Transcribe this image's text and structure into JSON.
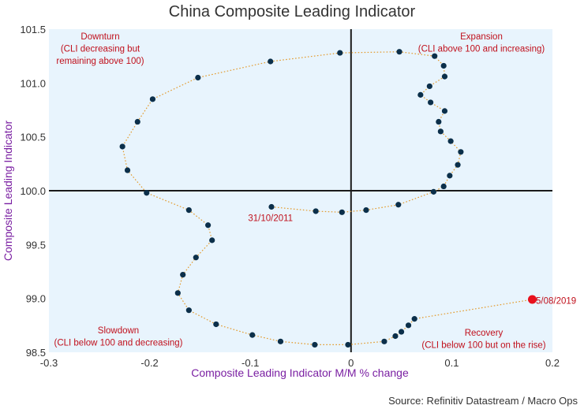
{
  "chart_data": {
    "type": "scatter",
    "title": "China Composite Leading Indicator",
    "xlabel": "Composite Leading Indicator M/M % change",
    "ylabel": "Composite Leading Indicator",
    "xlim": [
      -0.3,
      0.2
    ],
    "ylim": [
      98.5,
      101.5
    ],
    "xticks": [
      "-0.3",
      "-0.2",
      "-0.1",
      "0",
      "0.1",
      "0.2"
    ],
    "yticks": [
      "98.5",
      "99.0",
      "99.5",
      "100.0",
      "100.5",
      "101.0",
      "101.5"
    ],
    "grid": false,
    "reference_lines": {
      "x": 0,
      "y": 100
    },
    "colors": {
      "background": "#e8f4fd",
      "points": "#0b2f4a",
      "path": "#e39a2c",
      "latest_point": "#e8101c",
      "annotation": "#c0101c",
      "axis_label": "#7a1fa2"
    },
    "points": [
      {
        "x": -0.079,
        "y": 99.85
      },
      {
        "x": -0.035,
        "y": 99.81
      },
      {
        "x": -0.009,
        "y": 99.8
      },
      {
        "x": 0.015,
        "y": 99.82
      },
      {
        "x": 0.047,
        "y": 99.87
      },
      {
        "x": 0.082,
        "y": 99.99
      },
      {
        "x": 0.092,
        "y": 100.04
      },
      {
        "x": 0.098,
        "y": 100.14
      },
      {
        "x": 0.106,
        "y": 100.24
      },
      {
        "x": 0.109,
        "y": 100.36
      },
      {
        "x": 0.099,
        "y": 100.46
      },
      {
        "x": 0.089,
        "y": 100.55
      },
      {
        "x": 0.087,
        "y": 100.64
      },
      {
        "x": 0.093,
        "y": 100.74
      },
      {
        "x": 0.079,
        "y": 100.82
      },
      {
        "x": 0.069,
        "y": 100.89
      },
      {
        "x": 0.078,
        "y": 100.97
      },
      {
        "x": 0.093,
        "y": 101.06
      },
      {
        "x": 0.092,
        "y": 101.16
      },
      {
        "x": 0.083,
        "y": 101.25
      },
      {
        "x": 0.048,
        "y": 101.29
      },
      {
        "x": -0.011,
        "y": 101.28
      },
      {
        "x": -0.08,
        "y": 101.2
      },
      {
        "x": -0.152,
        "y": 101.05
      },
      {
        "x": -0.197,
        "y": 100.85
      },
      {
        "x": -0.212,
        "y": 100.64
      },
      {
        "x": -0.227,
        "y": 100.41
      },
      {
        "x": -0.222,
        "y": 100.19
      },
      {
        "x": -0.203,
        "y": 99.98
      },
      {
        "x": -0.161,
        "y": 99.82
      },
      {
        "x": -0.142,
        "y": 99.68
      },
      {
        "x": -0.138,
        "y": 99.54
      },
      {
        "x": -0.154,
        "y": 99.38
      },
      {
        "x": -0.167,
        "y": 99.22
      },
      {
        "x": -0.172,
        "y": 99.05
      },
      {
        "x": -0.161,
        "y": 98.89
      },
      {
        "x": -0.134,
        "y": 98.76
      },
      {
        "x": -0.098,
        "y": 98.66
      },
      {
        "x": -0.07,
        "y": 98.6
      },
      {
        "x": -0.036,
        "y": 98.57
      },
      {
        "x": -0.003,
        "y": 98.57
      },
      {
        "x": 0.033,
        "y": 98.6
      },
      {
        "x": 0.044,
        "y": 98.65
      },
      {
        "x": 0.05,
        "y": 98.69
      },
      {
        "x": 0.057,
        "y": 98.75
      },
      {
        "x": 0.063,
        "y": 98.81
      },
      {
        "x": 0.18,
        "y": 98.99
      }
    ],
    "latest_point": {
      "x": 0.18,
      "y": 98.99
    },
    "annotations": [
      {
        "text": "31/10/2011",
        "x": -0.08,
        "y": 99.79
      },
      {
        "text": "5/08/2019",
        "x": 0.182,
        "y": 98.98
      }
    ],
    "quadrants": [
      {
        "lines": [
          "Downturn",
          "(CLI decreasing but",
          "remaining above 100)"
        ],
        "location": "top-left"
      },
      {
        "lines": [
          "Expansion",
          "(CLI above 100 and increasing)"
        ],
        "location": "top-right"
      },
      {
        "lines": [
          "Slowdown",
          "(CLI below 100 and decreasing)"
        ],
        "location": "bottom-left"
      },
      {
        "lines": [
          "Recovery",
          "(CLI below 100 but on the rise)"
        ],
        "location": "bottom-right"
      }
    ],
    "source": "Source: Refinitiv Datastream / Macro Ops"
  }
}
